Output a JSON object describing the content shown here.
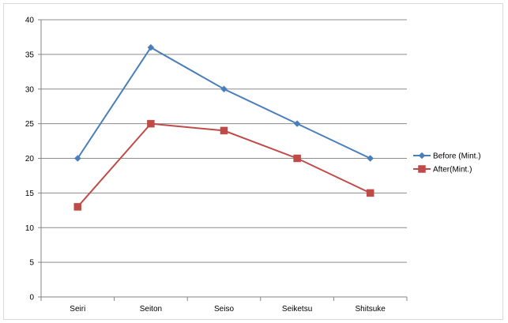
{
  "chart_data": {
    "type": "line",
    "categories": [
      "Seiri",
      "Seiton",
      "Seiso",
      "Seiketsu",
      "Shitsuke"
    ],
    "series": [
      {
        "name": "Before (Mint.)",
        "values": [
          20,
          36,
          30,
          25,
          20
        ],
        "color": "#4a7ebb",
        "marker": "diamond"
      },
      {
        "name": "After(Mint.)",
        "values": [
          13,
          25,
          24,
          20,
          15
        ],
        "color": "#be4b48",
        "marker": "square"
      }
    ],
    "title": "",
    "xlabel": "",
    "ylabel": "",
    "ylim": [
      0,
      40
    ],
    "yticks": [
      0,
      5,
      10,
      15,
      20,
      25,
      30,
      35,
      40
    ],
    "grid": true,
    "legend": "right",
    "gridline_color": "#8c8c8c",
    "axis_color": "#868686"
  }
}
